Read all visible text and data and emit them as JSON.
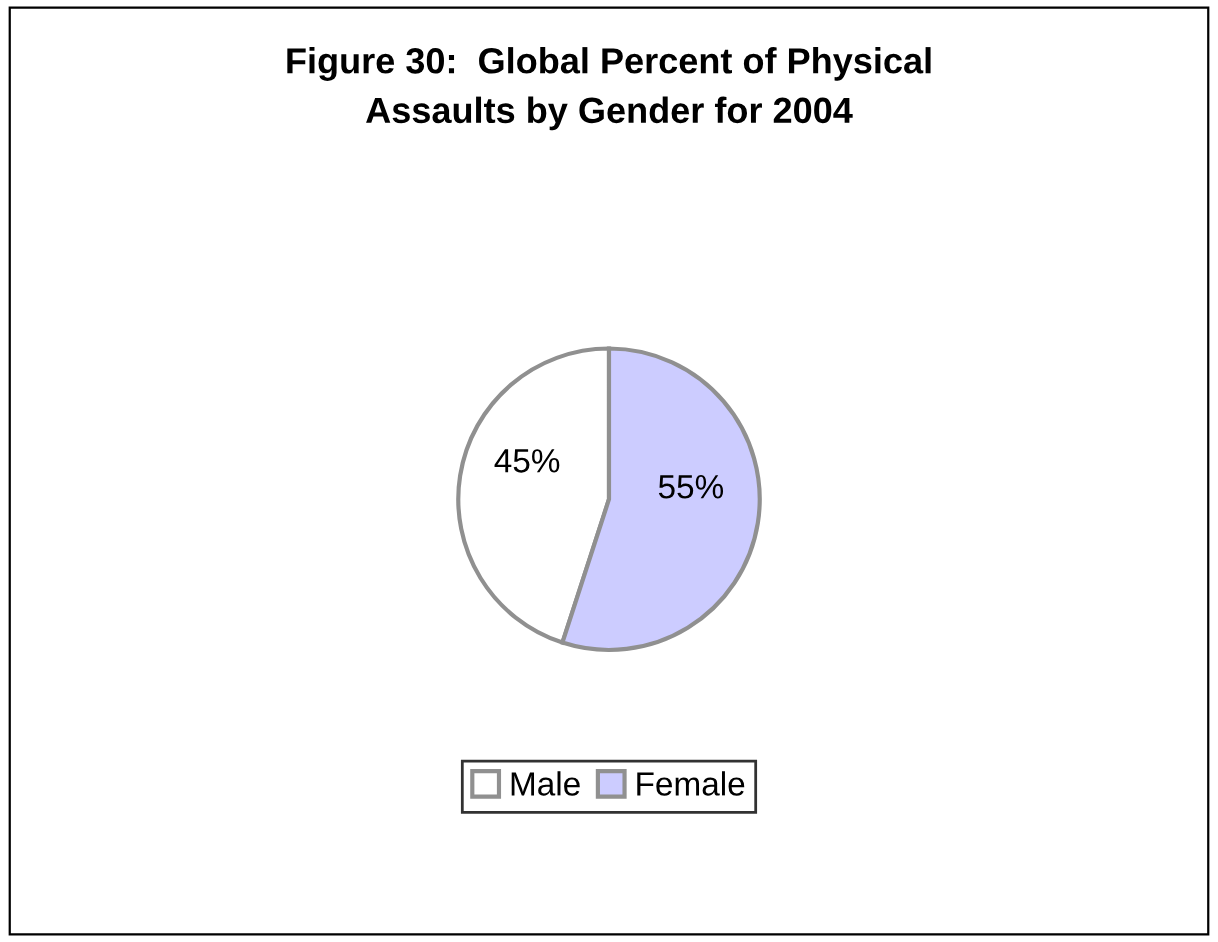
{
  "chart_data": {
    "type": "pie",
    "title": "Figure 30:  Global Percent of Physical\nAssaults by Gender for 2004",
    "categories": [
      "Male",
      "Female"
    ],
    "values": [
      45,
      55
    ],
    "colors": [
      "#ffffff",
      "#ccccff"
    ],
    "value_labels": [
      "45%",
      "55%"
    ],
    "legend": "bottom"
  }
}
